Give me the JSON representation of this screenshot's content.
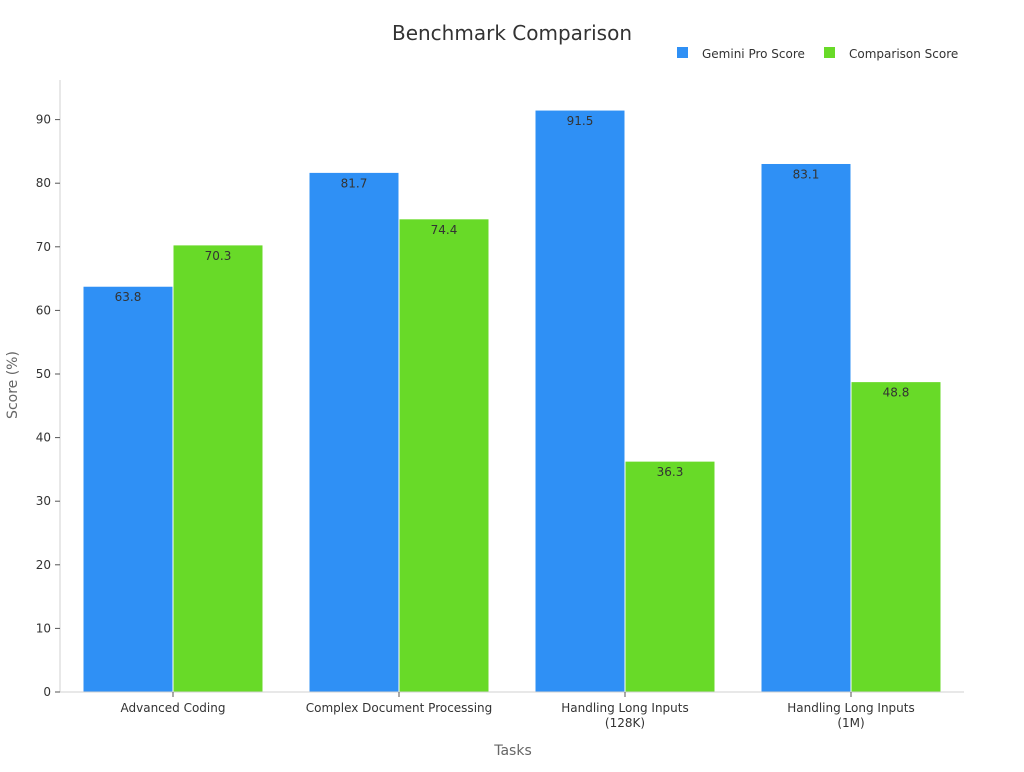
{
  "chart_data": {
    "type": "bar",
    "title": "Benchmark Comparison",
    "xlabel": "Tasks",
    "ylabel": "Score (%)",
    "categories": [
      [
        "Advanced Coding"
      ],
      [
        "Complex Document Processing"
      ],
      [
        "Handling Long Inputs",
        "(128K)"
      ],
      [
        "Handling Long Inputs",
        "(1M)"
      ]
    ],
    "series": [
      {
        "name": "Gemini Pro Score",
        "color": "#2f90f5",
        "values": [
          63.8,
          81.7,
          91.5,
          83.1
        ]
      },
      {
        "name": "Comparison Score",
        "color": "#68da28",
        "values": [
          70.3,
          74.4,
          36.3,
          48.8
        ]
      }
    ],
    "ylim": [
      0,
      96
    ],
    "yticks": [
      0,
      10,
      20,
      30,
      40,
      50,
      60,
      70,
      80,
      90
    ],
    "grid": false,
    "legend": "top-right",
    "data_labels": true
  }
}
